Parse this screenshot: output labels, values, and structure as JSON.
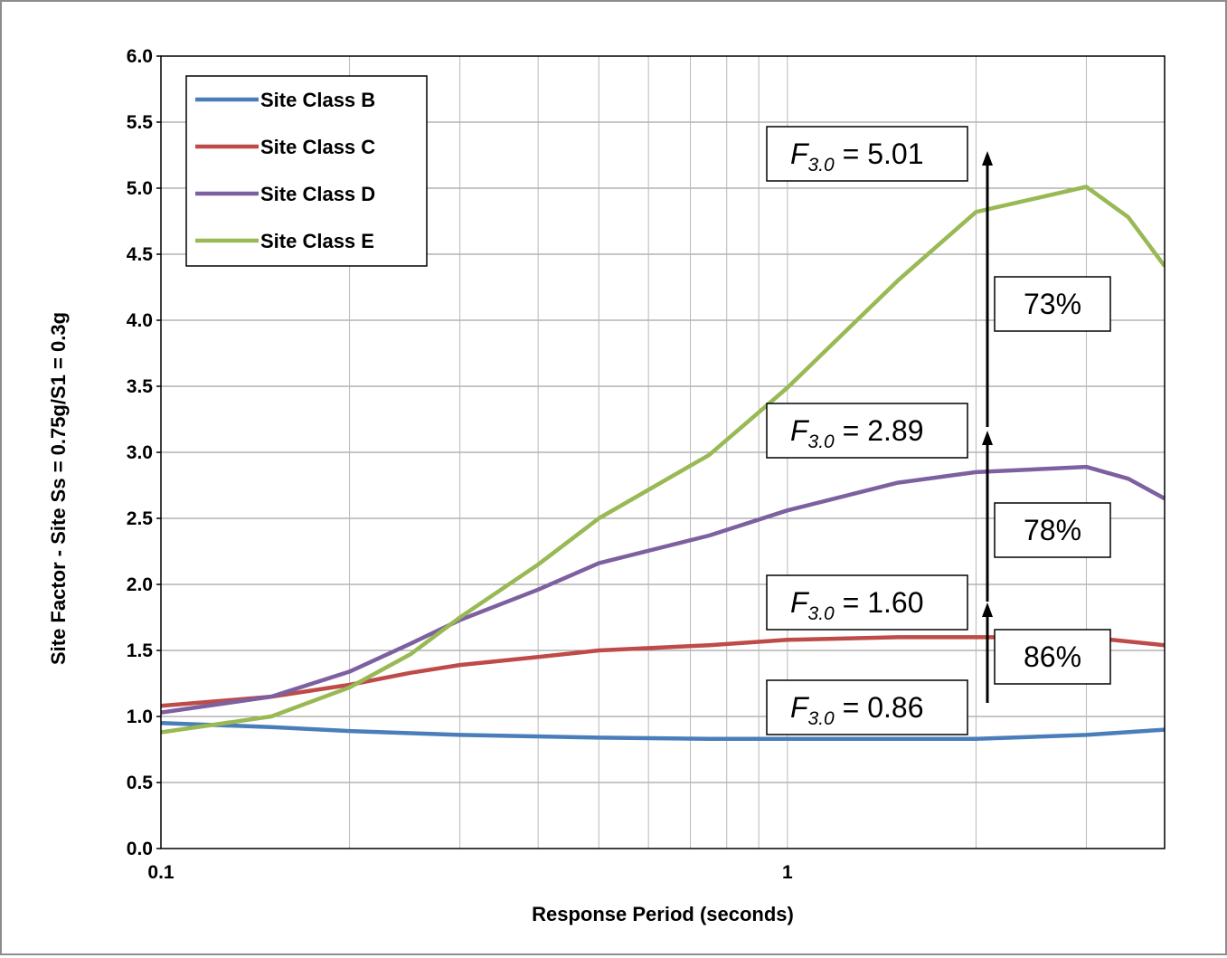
{
  "chart_data": {
    "type": "line",
    "xscale": "log",
    "xlim": [
      0.1,
      4
    ],
    "ylim": [
      0,
      6
    ],
    "x_ticks": [
      "0.1",
      "1"
    ],
    "y_ticks": [
      "0.0",
      "0.5",
      "1.0",
      "1.5",
      "2.0",
      "2.5",
      "3.0",
      "3.5",
      "4.0",
      "4.5",
      "5.0",
      "5.5",
      "6.0"
    ],
    "xlabel": "Response Period  (seconds)",
    "ylabel": "Site  Factor - Site Ss = 0.75g/S1 = 0.3g",
    "grid": true,
    "legend_position": "top-left",
    "series": [
      {
        "name": "Site Class B",
        "color": "#4a7ebb",
        "x": [
          0.1,
          0.15,
          0.2,
          0.3,
          0.5,
          0.75,
          1.0,
          1.5,
          2.0,
          3.0,
          4.0
        ],
        "y": [
          0.95,
          0.92,
          0.89,
          0.86,
          0.84,
          0.83,
          0.83,
          0.83,
          0.83,
          0.86,
          0.9
        ]
      },
      {
        "name": "Site Class C",
        "color": "#be4b48",
        "x": [
          0.1,
          0.15,
          0.2,
          0.25,
          0.3,
          0.4,
          0.5,
          0.75,
          1.0,
          1.5,
          2.0,
          3.0,
          4.0
        ],
        "y": [
          1.08,
          1.15,
          1.24,
          1.33,
          1.39,
          1.45,
          1.5,
          1.54,
          1.58,
          1.6,
          1.6,
          1.6,
          1.54
        ]
      },
      {
        "name": "Site Class D",
        "color": "#7d60a0",
        "x": [
          0.1,
          0.15,
          0.2,
          0.25,
          0.3,
          0.4,
          0.5,
          0.75,
          1.0,
          1.5,
          2.0,
          3.0,
          3.5,
          4.0
        ],
        "y": [
          1.03,
          1.15,
          1.34,
          1.55,
          1.73,
          1.96,
          2.16,
          2.37,
          2.56,
          2.77,
          2.85,
          2.89,
          2.8,
          2.65
        ]
      },
      {
        "name": "Site Class E",
        "color": "#98b954",
        "x": [
          0.1,
          0.15,
          0.2,
          0.25,
          0.3,
          0.4,
          0.5,
          0.75,
          1.0,
          1.5,
          2.0,
          3.0,
          3.5,
          4.0
        ],
        "y": [
          0.88,
          1.0,
          1.22,
          1.47,
          1.75,
          2.15,
          2.5,
          2.98,
          3.49,
          4.3,
          4.82,
          5.01,
          4.78,
          4.41
        ]
      }
    ],
    "annotations": [
      {
        "label": "F",
        "sub": "3.0",
        "text": " = 5.01",
        "y": 5.01
      },
      {
        "label": "F",
        "sub": "3.0",
        "text": " = 2.89",
        "y": 2.89
      },
      {
        "label": "F",
        "sub": "3.0",
        "text": " = 1.60",
        "y": 1.6
      },
      {
        "label": "F",
        "sub": "3.0",
        "text": " = 0.86",
        "y": 0.86
      }
    ],
    "percent_labels": [
      "73%",
      "78%",
      "86%"
    ]
  }
}
